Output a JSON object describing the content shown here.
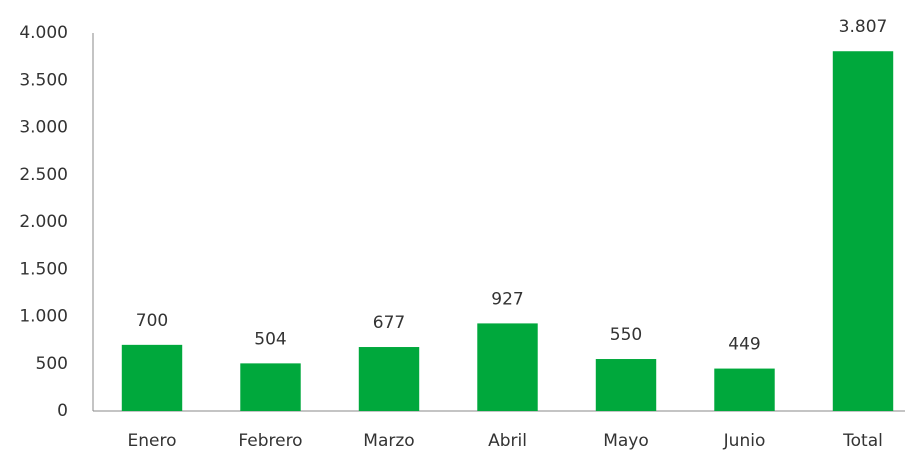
{
  "chart_data": {
    "type": "bar",
    "categories": [
      "Enero",
      "Febrero",
      "Marzo",
      "Abril",
      "Mayo",
      "Junio",
      "Total"
    ],
    "values": [
      700,
      504,
      677,
      927,
      550,
      449,
      3807
    ],
    "value_labels": [
      "700",
      "504",
      "677",
      "927",
      "550",
      "449",
      "3.807"
    ],
    "color": "#00a83c",
    "ylim": [
      0,
      4000
    ],
    "yticks": [
      0,
      500,
      {
        "value": 1000,
        "label": "1.000"
      },
      {
        "value": 1500,
        "label": "1.500"
      },
      {
        "value": 2000,
        "label": "2.000"
      },
      {
        "value": 2500,
        "label": "2.500"
      },
      {
        "value": 3000,
        "label": "3.000"
      },
      {
        "value": 3500,
        "label": "3.500"
      },
      {
        "value": 4000,
        "label": "4.000"
      }
    ],
    "grid": false
  }
}
